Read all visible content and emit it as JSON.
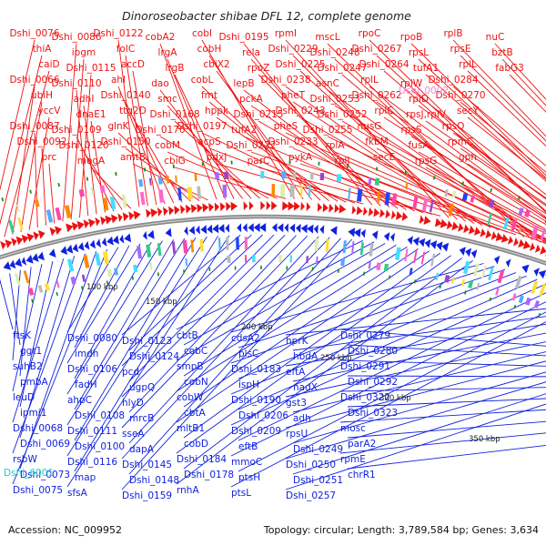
{
  "title": "Dinoroseobacter shibae DFL 12, complete genome",
  "footer": {
    "accession": "Accession: NC_009952",
    "summary": "Topology: circular; Length: 3,789,584 bp; Genes: 3,634"
  },
  "scale_labels": [
    "100 kbp",
    "150 kbp",
    "200 kbp",
    "250 kbp",
    "300 kbp",
    "350 kbp"
  ],
  "colors": {
    "forward": "#ee1111",
    "reverse": "#1122dd",
    "rna_highlight_red": "#ee88cc",
    "rna_highlight_blue": "#22cccc",
    "backbone": "#888888",
    "tick": "#1a8a1a"
  },
  "forward_genes": [
    {
      "label": "Dshi_0076",
      "pos": 14
    },
    {
      "label": "thiA",
      "pos": 15
    },
    {
      "label": "caiD",
      "pos": 16
    },
    {
      "label": "Dshi_0066",
      "pos": 17
    },
    {
      "label": "ubiH",
      "pos": 18
    },
    {
      "label": "yccV",
      "pos": 19
    },
    {
      "label": "Dshi_0087",
      "pos": 21
    },
    {
      "label": "Dshi_0092",
      "pos": 22
    },
    {
      "label": "prc",
      "pos": 23
    },
    {
      "label": "Dshi_0086",
      "pos": 24
    },
    {
      "label": "ipgm",
      "pos": 25
    },
    {
      "label": "Dshi_0115",
      "pos": 28
    },
    {
      "label": "Dshi_0110",
      "pos": 30
    },
    {
      "label": "adhI",
      "pos": 32
    },
    {
      "label": "dnaE1",
      "pos": 33
    },
    {
      "label": "Dshi_0109",
      "pos": 34
    },
    {
      "label": "Dshi_0120",
      "pos": 36
    },
    {
      "label": "mogA",
      "pos": 37
    },
    {
      "label": "Dshi_0122",
      "pos": 38
    },
    {
      "label": "folC",
      "pos": 40
    },
    {
      "label": "accD",
      "pos": 41
    },
    {
      "label": "ahl",
      "pos": 42
    },
    {
      "label": "Dshi_0140",
      "pos": 44
    },
    {
      "label": "ttg2D",
      "pos": 45
    },
    {
      "label": "glnK",
      "pos": 47
    },
    {
      "label": "Dshi_0150",
      "pos": 48
    },
    {
      "label": "amtB",
      "pos": 49
    },
    {
      "label": "cobA2",
      "pos": 51
    },
    {
      "label": "lrgA",
      "pos": 52
    },
    {
      "label": "lrgB",
      "pos": 53
    },
    {
      "label": "dao",
      "pos": 54
    },
    {
      "label": "smc",
      "pos": 57
    },
    {
      "label": "Dshi_0168",
      "pos": 58
    },
    {
      "label": "Dshi_0170",
      "pos": 60
    },
    {
      "label": "cobM",
      "pos": 62
    },
    {
      "label": "cbiG",
      "pos": 63
    },
    {
      "label": "cobI",
      "pos": 64
    },
    {
      "label": "cobH",
      "pos": 65
    },
    {
      "label": "cbiX2",
      "pos": 66
    },
    {
      "label": "cobL",
      "pos": 67
    },
    {
      "label": "fmt",
      "pos": 68
    },
    {
      "label": "hppk",
      "pos": 70
    },
    {
      "label": "Dshi_0197",
      "pos": 72
    },
    {
      "label": "acpS",
      "pos": 73
    },
    {
      "label": "pdxJ",
      "pos": 74
    },
    {
      "label": "Dshi_0195",
      "pos": 75
    },
    {
      "label": "rela",
      "pos": 77
    },
    {
      "label": "rpoZ",
      "pos": 78
    },
    {
      "label": "lepB",
      "pos": 79
    },
    {
      "label": "pckA",
      "pos": 82
    },
    {
      "label": "Dshi_0215",
      "pos": 83
    },
    {
      "label": "tufA2",
      "pos": 85
    },
    {
      "label": "Dshi_0222",
      "pos": 86
    },
    {
      "label": "parC",
      "pos": 87
    },
    {
      "label": "rpmI",
      "pos": 88
    },
    {
      "label": "Dshi_0229",
      "pos": 89
    },
    {
      "label": "Dshi_0225",
      "pos": 90
    },
    {
      "label": "Dshi_0238",
      "pos": 91
    },
    {
      "label": "pheT",
      "pos": 92
    },
    {
      "label": "Dshi_0243",
      "pos": 93
    },
    {
      "label": "pheS",
      "pos": 94
    },
    {
      "label": "Dshi_0233",
      "pos": 95
    },
    {
      "label": "pykA",
      "pos": 96
    },
    {
      "label": "mscL",
      "pos": 97
    },
    {
      "label": "Dshi_0248",
      "pos": 98
    },
    {
      "label": "Dshi_0247",
      "pos": 100
    },
    {
      "label": "asnC",
      "pos": 101
    },
    {
      "label": "Dshi_0253",
      "pos": 102
    },
    {
      "label": "Dshi_0252",
      "pos": 103
    },
    {
      "label": "Dshi_0255",
      "pos": 104
    },
    {
      "label": "rplA",
      "pos": 105
    },
    {
      "label": "rplJ",
      "pos": 106
    },
    {
      "label": "rpoC",
      "pos": 107
    },
    {
      "label": "Dshi_0267",
      "pos": 110
    },
    {
      "label": "Dshi_0264",
      "pos": 111
    },
    {
      "label": "rplL",
      "pos": 112
    },
    {
      "label": "Dshi_0262",
      "pos": 113
    },
    {
      "label": "rplC",
      "pos": 114
    },
    {
      "label": "nusG",
      "pos": 115
    },
    {
      "label": "fkbM",
      "pos": 116
    },
    {
      "label": "secE",
      "pos": 117
    },
    {
      "label": "rpoB",
      "pos": 118
    },
    {
      "label": "rpsL",
      "pos": 119
    },
    {
      "label": "tufA1",
      "pos": 120
    },
    {
      "label": "rplW",
      "pos": 122
    },
    {
      "label": "rplD",
      "pos": 123
    },
    {
      "label": "rpsJ,rplV",
      "pos": 124
    },
    {
      "label": "rpsS",
      "pos": 125
    },
    {
      "label": "fusA",
      "pos": 126
    },
    {
      "label": "rpsG",
      "pos": 127
    },
    {
      "label": "rplB",
      "pos": 128
    },
    {
      "label": "rpsE",
      "pos": 129
    },
    {
      "label": "rplL",
      "pos": 130
    },
    {
      "label": "Dshi_0284",
      "pos": 131
    },
    {
      "label": "Dshi_0270",
      "pos": 132
    },
    {
      "label": "secY",
      "pos": 133
    },
    {
      "label": "rpsQ",
      "pos": 134
    },
    {
      "label": "rpmC",
      "pos": 135
    },
    {
      "label": "gph",
      "pos": 137
    },
    {
      "label": "nuC",
      "pos": 138
    },
    {
      "label": "bztB",
      "pos": 140
    },
    {
      "label": "fabG3",
      "pos": 142
    }
  ],
  "rna_gene_red": {
    "label": "Dshi_0002",
    "pos": 99
  },
  "reverse_genes": [
    {
      "label": "ftsK",
      "pos": 210
    },
    {
      "label": "ggt1",
      "pos": 211
    },
    {
      "label": "suhB2",
      "pos": 212
    },
    {
      "label": "pmbA",
      "pos": 213
    },
    {
      "label": "leuD",
      "pos": 214
    },
    {
      "label": "ipmi1",
      "pos": 215
    },
    {
      "label": "Dshi_0068",
      "pos": 216
    },
    {
      "label": "Dshi_0069",
      "pos": 217
    },
    {
      "label": "rsbW",
      "pos": 218
    },
    {
      "label": "Dshi_0073",
      "pos": 219
    },
    {
      "label": "Dshi_0075",
      "pos": 220
    },
    {
      "label": "Dshi_0080",
      "pos": 222
    },
    {
      "label": "imdh",
      "pos": 223
    },
    {
      "label": "Dshi_0106",
      "pos": 224
    },
    {
      "label": "fadH",
      "pos": 225
    },
    {
      "label": "ahpC",
      "pos": 226
    },
    {
      "label": "Dshi_0108",
      "pos": 227
    },
    {
      "label": "Dshi_0111",
      "pos": 228
    },
    {
      "label": "Dshi_0100",
      "pos": 229
    },
    {
      "label": "Dshi_0116",
      "pos": 230
    },
    {
      "label": "map",
      "pos": 231
    },
    {
      "label": "sfsA",
      "pos": 232
    },
    {
      "label": "Dshi_0123",
      "pos": 233
    },
    {
      "label": "Dshi_0124",
      "pos": 234
    },
    {
      "label": "pcd",
      "pos": 236
    },
    {
      "label": "ugpQ",
      "pos": 237
    },
    {
      "label": "hlyD",
      "pos": 238
    },
    {
      "label": "mrcB",
      "pos": 239
    },
    {
      "label": "sseA",
      "pos": 240
    },
    {
      "label": "dapA",
      "pos": 241
    },
    {
      "label": "Dshi_0145",
      "pos": 242
    },
    {
      "label": "Dshi_0148",
      "pos": 243
    },
    {
      "label": "Dshi_0159",
      "pos": 244
    },
    {
      "label": "cbtB",
      "pos": 245
    },
    {
      "label": "cobC",
      "pos": 246
    },
    {
      "label": "smpB",
      "pos": 248
    },
    {
      "label": "cobN",
      "pos": 249
    },
    {
      "label": "cobW",
      "pos": 250
    },
    {
      "label": "cbtA",
      "pos": 251
    },
    {
      "label": "mltB1",
      "pos": 252
    },
    {
      "label": "cobD",
      "pos": 253
    },
    {
      "label": "Dshi_0184",
      "pos": 254
    },
    {
      "label": "Dshi_0178",
      "pos": 256
    },
    {
      "label": "rnhA",
      "pos": 257
    },
    {
      "label": "cdsA2",
      "pos": 258
    },
    {
      "label": "plsC",
      "pos": 259
    },
    {
      "label": "Dshi_0183",
      "pos": 260
    },
    {
      "label": "ispH",
      "pos": 261
    },
    {
      "label": "Dshi_0190",
      "pos": 262
    },
    {
      "label": "Dshi_0206",
      "pos": 263
    },
    {
      "label": "Dshi_0209",
      "pos": 264
    },
    {
      "label": "eftB",
      "pos": 265
    },
    {
      "label": "mmoC",
      "pos": 267
    },
    {
      "label": "ptsH",
      "pos": 268
    },
    {
      "label": "ptsL",
      "pos": 269
    },
    {
      "label": "hprK",
      "pos": 270
    },
    {
      "label": "hbdA",
      "pos": 271
    },
    {
      "label": "eftA",
      "pos": 272
    },
    {
      "label": "nadX",
      "pos": 275
    },
    {
      "label": "gst3",
      "pos": 276
    },
    {
      "label": "adh",
      "pos": 277
    },
    {
      "label": "rpsU",
      "pos": 278
    },
    {
      "label": "Dshi_0249",
      "pos": 279
    },
    {
      "label": "Dshi_0250",
      "pos": 280
    },
    {
      "label": "Dshi_0251",
      "pos": 281
    },
    {
      "label": "Dshi_0257",
      "pos": 283
    },
    {
      "label": "Dshi_0279",
      "pos": 285
    },
    {
      "label": "Dshi_0280",
      "pos": 286
    },
    {
      "label": "Dshi_0291",
      "pos": 287
    },
    {
      "label": "Dshi_0292",
      "pos": 288
    },
    {
      "label": "Dshi_0322",
      "pos": 290
    },
    {
      "label": "Dshi_0323",
      "pos": 291
    },
    {
      "label": "mosc",
      "pos": 292
    },
    {
      "label": "parA2",
      "pos": 293
    },
    {
      "label": "rpmE",
      "pos": 294
    },
    {
      "label": "chrR1",
      "pos": 296
    }
  ],
  "rna_gene_blue": {
    "label": "Dshi_6001",
    "pos": 221
  }
}
